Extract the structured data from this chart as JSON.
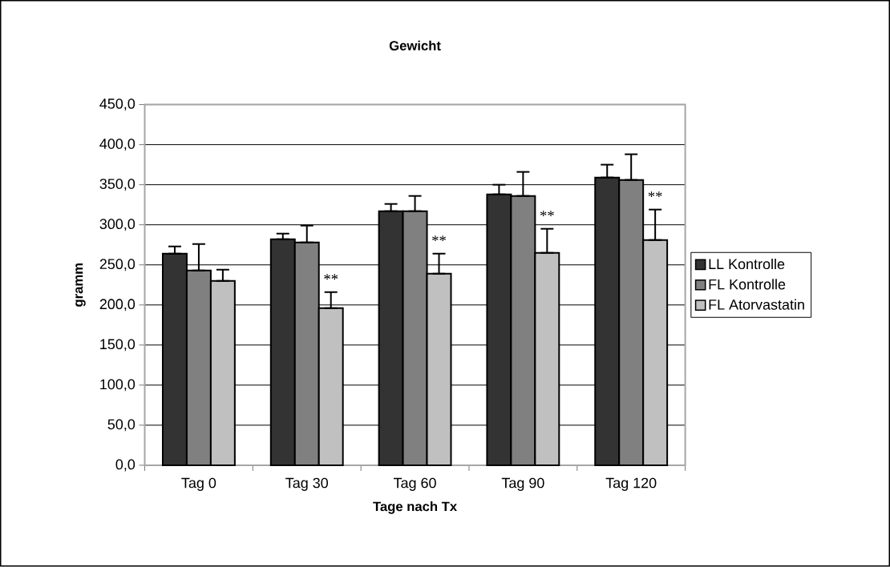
{
  "chart_data": {
    "type": "bar",
    "title": "Gewicht",
    "xlabel": "Tage nach Tx",
    "ylabel": "gramm",
    "categories": [
      "Tag 0",
      "Tag 30",
      "Tag 60",
      "Tag 90",
      "Tag 120"
    ],
    "series": [
      {
        "name": "LL Kontrolle",
        "color": "#333333",
        "values": [
          264,
          282,
          317,
          338,
          359
        ],
        "errors": [
          [
            264,
            273
          ],
          [
            282,
            289
          ],
          [
            317,
            326
          ],
          [
            338,
            350
          ],
          [
            359,
            375
          ]
        ]
      },
      {
        "name": "FL Kontrolle",
        "color": "#808080",
        "values": [
          243,
          278,
          317,
          336,
          356
        ],
        "errors": [
          [
            243,
            276
          ],
          [
            278,
            299
          ],
          [
            317,
            336
          ],
          [
            336,
            366
          ],
          [
            356,
            388
          ]
        ]
      },
      {
        "name": "FL Atorvastatin",
        "color": "#c0c0c0",
        "values": [
          230,
          196,
          239,
          265,
          281
        ],
        "errors": [
          [
            230,
            244
          ],
          [
            196,
            216
          ],
          [
            239,
            264
          ],
          [
            265,
            295
          ],
          [
            281,
            319
          ]
        ]
      }
    ],
    "ylim": [
      0,
      450
    ],
    "yticks": [
      {
        "value": 0,
        "label": "0,0"
      },
      {
        "value": 50,
        "label": "50,0"
      },
      {
        "value": 100,
        "label": "100,0"
      },
      {
        "value": 150,
        "label": "150,0"
      },
      {
        "value": 200,
        "label": "200,0"
      },
      {
        "value": 250,
        "label": "250,0"
      },
      {
        "value": 300,
        "label": "300,0"
      },
      {
        "value": 350,
        "label": "350,0"
      },
      {
        "value": 400,
        "label": "400,0"
      },
      {
        "value": 450,
        "label": "450,0"
      }
    ],
    "annotations": [
      "**",
      "**",
      "**",
      "**"
    ],
    "grid": "y",
    "legend": "right"
  }
}
